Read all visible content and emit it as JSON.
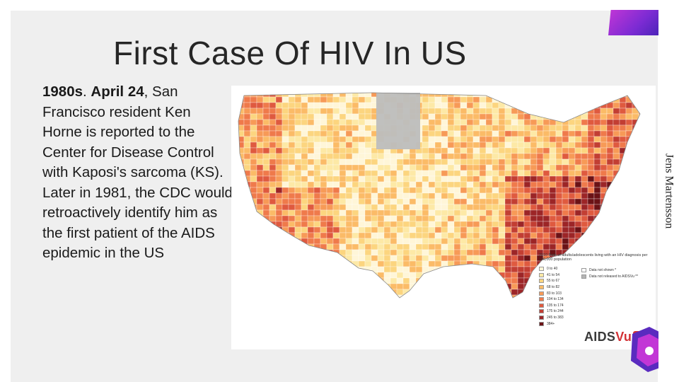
{
  "slide": {
    "title": "First Case Of HIV In US",
    "body_lead": "1980s",
    "body_period": ". ",
    "body_date": "April 24",
    "body_rest": ", San Francisco resident Ken Horne is reported to the Center for Disease Control with Kaposi's sarcoma (KS). Later in 1981, the CDC would retroactively identify him as the first patient of the AIDS epidemic in the US",
    "credit": "Jens Martensson"
  },
  "map": {
    "legend_title": "2010 Rate of adults/adolescents living with an HIV diagnosis per 100,000 population",
    "bins": [
      {
        "label": "0 to 40",
        "color": "#fff6d8"
      },
      {
        "label": "41 to 54",
        "color": "#fde9a6"
      },
      {
        "label": "55 to 67",
        "color": "#fcd57f"
      },
      {
        "label": "68 to 82",
        "color": "#fbbb67"
      },
      {
        "label": "83 to 103",
        "color": "#f79a57"
      },
      {
        "label": "104 to 134",
        "color": "#ef7a4b"
      },
      {
        "label": "135 to 174",
        "color": "#df5a3f"
      },
      {
        "label": "175 to 244",
        "color": "#c23e33"
      },
      {
        "label": "245 to 383",
        "color": "#9c2527"
      },
      {
        "label": "384+",
        "color": "#6b1216"
      }
    ],
    "extra": [
      {
        "label": "Data not shown *",
        "color": "#ffffff"
      },
      {
        "label": "Data not released to AIDSVu **",
        "color": "#b5b5b5"
      }
    ],
    "logo_main": "AIDS",
    "logo_accent": "Vu"
  },
  "colors": {
    "slide_bg": "#efefef",
    "accent_purple": "#7b2bd3",
    "logo_red": "#d33236"
  }
}
